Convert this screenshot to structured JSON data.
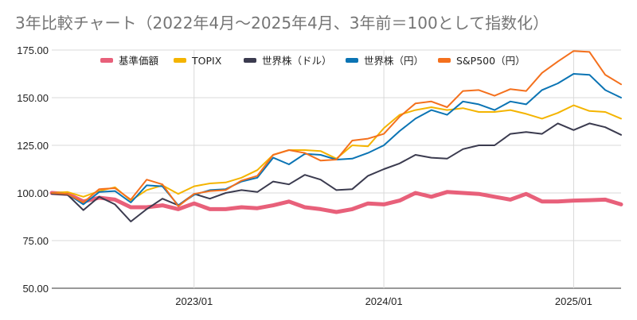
{
  "chart_data": {
    "type": "line",
    "title": "3年比較チャート（2022年4月～2025年4月、3年前＝100として指数化）",
    "xlabel": "",
    "ylabel": "",
    "ylim": [
      50,
      175
    ],
    "yticks": [
      "50.00",
      "75.00",
      "100.00",
      "125.00",
      "150.00",
      "175.00"
    ],
    "xticks": [
      "2023/01",
      "2024/01",
      "2025/01"
    ],
    "x": [
      "2022/04",
      "2022/05",
      "2022/06",
      "2022/07",
      "2022/08",
      "2022/09",
      "2022/10",
      "2022/11",
      "2022/12",
      "2023/01",
      "2023/02",
      "2023/03",
      "2023/04",
      "2023/05",
      "2023/06",
      "2023/07",
      "2023/08",
      "2023/09",
      "2023/10",
      "2023/11",
      "2023/12",
      "2024/01",
      "2024/02",
      "2024/03",
      "2024/04",
      "2024/05",
      "2024/06",
      "2024/07",
      "2024/08",
      "2024/09",
      "2024/10",
      "2024/11",
      "2024/12",
      "2025/01",
      "2025/02",
      "2025/03",
      "2025/04"
    ],
    "grid": true,
    "legend_position": "top",
    "series": [
      {
        "name": "基準価額",
        "color": "#e8607a",
        "width": 5,
        "values": [
          100,
          99.5,
          95.5,
          97.5,
          96.5,
          92.5,
          92.5,
          93.5,
          91.5,
          94.5,
          91.5,
          91.5,
          92.5,
          92,
          93.5,
          95.5,
          92.5,
          91.5,
          90,
          91.5,
          94.5,
          94,
          96,
          100,
          98,
          100.5,
          100,
          99.5,
          98,
          96.5,
          99.5,
          95.5,
          95.5,
          96,
          96.2,
          96.5,
          94
        ]
      },
      {
        "name": "TOPIX",
        "color": "#f4b400",
        "width": 2,
        "values": [
          100,
          100.5,
          98,
          101,
          103,
          96,
          101.5,
          104,
          99.5,
          103.5,
          105,
          105.5,
          108,
          112,
          120,
          122.5,
          122.5,
          122,
          118,
          125,
          124.5,
          134,
          141,
          143.5,
          145,
          143.5,
          144.5,
          142.5,
          142.5,
          143.5,
          141.5,
          139,
          142,
          146,
          143,
          142.5,
          139
        ]
      },
      {
        "name": "世界株（ドル）",
        "color": "#3b3b4f",
        "width": 2,
        "values": [
          99.5,
          99,
          91,
          98,
          94,
          85,
          91.5,
          97,
          93.5,
          99.5,
          97,
          100,
          101.5,
          100.5,
          106,
          104.5,
          109.5,
          107,
          101.5,
          102,
          109,
          112.5,
          115.5,
          120,
          118.5,
          118,
          123,
          125,
          125,
          131,
          132,
          131,
          136.5,
          133,
          136.5,
          134.5,
          130.5
        ]
      },
      {
        "name": "世界株（円）",
        "color": "#0b74b4",
        "width": 2,
        "values": [
          100,
          99.5,
          94,
          100.5,
          101,
          95,
          104,
          103.5,
          93.5,
          99,
          101.5,
          102,
          106,
          108,
          118.5,
          115,
          120.5,
          120,
          117.5,
          118,
          121,
          125,
          132.5,
          139,
          143.5,
          141,
          148,
          146.5,
          143.5,
          148,
          146.5,
          154,
          157.5,
          162.5,
          162,
          154,
          150
        ]
      },
      {
        "name": "S&P500（円）",
        "color": "#f4701d",
        "width": 2,
        "values": [
          100,
          99.5,
          95,
          102,
          102.5,
          96.5,
          107,
          104.5,
          93,
          99.5,
          101,
          101.5,
          106.5,
          109,
          120,
          122.5,
          121,
          117,
          117.5,
          127.5,
          128.5,
          131,
          140,
          147,
          148,
          145,
          153.5,
          154,
          151,
          154.5,
          153.5,
          163,
          169,
          174.5,
          174,
          162,
          157
        ]
      }
    ]
  }
}
